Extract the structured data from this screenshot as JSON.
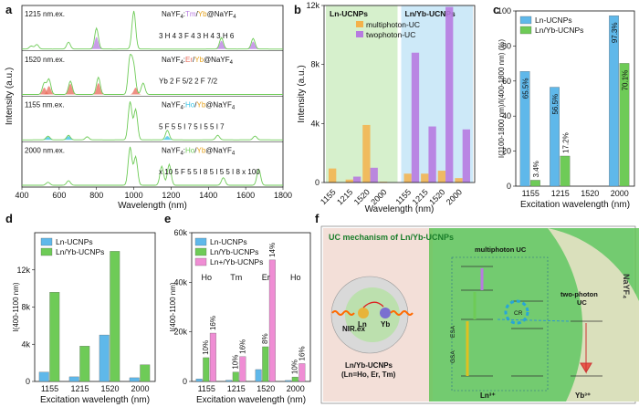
{
  "colors": {
    "blue": "#5fb8ea",
    "blueLight": "#cde9f8",
    "green": "#6ecb57",
    "greenLight": "#d6f0cc",
    "purple": "#b77be0",
    "orange": "#f4b24a",
    "red": "#e86a5a",
    "cyan": "#37c3e6",
    "pink": "#ef8dd4"
  },
  "labels": {
    "a": "a",
    "b": "b",
    "c": "c",
    "d": "d",
    "e": "e",
    "f": "f"
  },
  "chart_data": [
    {
      "id": "a",
      "type": "line",
      "xlabel": "Wavelength (nm)",
      "ylabel": "Intensity (a.u.)",
      "xlim": [
        400,
        1800
      ],
      "xticks": [
        "400",
        "600",
        "800",
        "1000",
        "1200",
        "1400",
        "1600",
        "1800"
      ],
      "rows": [
        {
          "exc": "1215 nm.ex.",
          "formula": [
            "NaYF",
            "4",
            ":",
            "Tm",
            "/",
            "Yb",
            "@NaYF",
            "4"
          ],
          "dopant_color": "#b77be0",
          "annotations": [
            "3",
            "H",
            "4",
            "3",
            "F",
            "4",
            "3",
            "H",
            "4",
            "3",
            "H",
            "6"
          ],
          "green_peaks": [
            [
              450,
              0.08
            ],
            [
              480,
              0.12
            ],
            [
              650,
              0.18
            ],
            [
              800,
              0.55
            ],
            [
              1000,
              1.0
            ],
            [
              1470,
              0.3
            ],
            [
              1640,
              0.28
            ]
          ],
          "fill_peaks": [
            [
              800,
              0.32,
              "#b77be0"
            ],
            [
              1470,
              0.22,
              "#b77be0"
            ],
            [
              1640,
              0.2,
              "#b77be0"
            ]
          ]
        },
        {
          "exc": "1520 nm.ex.",
          "formula": [
            "NaYF",
            "4",
            ":",
            "Er",
            "/",
            "Yb",
            "@NaYF",
            "4"
          ],
          "dopant_color": "#e86a5a",
          "annotations": [
            "Yb",
            "2",
            "F",
            "5/2",
            "2",
            "F",
            "7/2"
          ],
          "green_peaks": [
            [
              520,
              0.3
            ],
            [
              545,
              0.4
            ],
            [
              660,
              0.35
            ],
            [
              810,
              0.45
            ],
            [
              980,
              1.0
            ],
            [
              1000,
              0.7
            ],
            [
              1050,
              0.3
            ]
          ],
          "fill_peaks": [
            [
              520,
              0.18,
              "#e86a5a"
            ],
            [
              545,
              0.22,
              "#e86a5a"
            ],
            [
              660,
              0.28,
              "#e86a5a"
            ],
            [
              810,
              0.3,
              "#e86a5a"
            ],
            [
              1010,
              0.18,
              "#e86a5a"
            ]
          ]
        },
        {
          "exc": "1155 nm.ex.",
          "formula": [
            "NaYF",
            "4",
            ":",
            "Ho",
            "/",
            "Yb",
            "@NaYF",
            "4"
          ],
          "dopant_color": "#37c3e6",
          "annotations": [
            "5",
            "F",
            "5",
            "5",
            "I",
            "7",
            "5",
            "I",
            "5",
            "5",
            "I",
            "7"
          ],
          "green_peaks": [
            [
              540,
              0.1
            ],
            [
              650,
              0.12
            ],
            [
              750,
              0.08
            ],
            [
              980,
              1.0
            ],
            [
              1010,
              0.8
            ],
            [
              1180,
              0.25
            ],
            [
              1450,
              0.12
            ],
            [
              1650,
              0.1
            ]
          ],
          "fill_peaks": [
            [
              540,
              0.08,
              "#37c3e6"
            ],
            [
              650,
              0.1,
              "#37c3e6"
            ],
            [
              1180,
              0.1,
              "#37c3e6"
            ]
          ]
        },
        {
          "exc": "2000 nm.ex.",
          "formula": [
            "NaYF",
            "4",
            ":",
            "Ho",
            "/",
            "Yb",
            "@NaYF",
            "4"
          ],
          "dopant_color": "#6ecb57",
          "annotations": [
            "x 10",
            "5",
            "F",
            "5",
            "5",
            "I",
            "8",
            "5",
            "I",
            "5",
            "5",
            "I",
            "8",
            "x 100"
          ],
          "green_peaks": [
            [
              540,
              0.08
            ],
            [
              650,
              0.12
            ],
            [
              980,
              1.0
            ],
            [
              1010,
              0.75
            ],
            [
              1150,
              0.5
            ],
            [
              1190,
              0.55
            ],
            [
              1480,
              0.2
            ],
            [
              1670,
              0.42
            ]
          ],
          "fill_peaks": []
        }
      ]
    },
    {
      "id": "b",
      "type": "bar",
      "ylabel": "Intensity (a.u.)",
      "xlabel": "Wavelength (nm)",
      "ylim": [
        0,
        12000
      ],
      "yticks": [
        "0",
        "4k",
        "8k",
        "12k"
      ],
      "groups": [
        {
          "name": "Ln-UCNPs",
          "bg": "#d6f0cc",
          "categories": [
            "1155",
            "1215",
            "1520",
            "2000"
          ],
          "multiphoton": [
            950,
            200,
            3900,
            50
          ],
          "twophoton": [
            0,
            400,
            1000,
            0
          ]
        },
        {
          "name": "Ln/Yb-UCNPs",
          "bg": "#cde9f8",
          "categories": [
            "1155",
            "1215",
            "1520",
            "2000"
          ],
          "multiphoton": [
            600,
            600,
            800,
            300
          ],
          "twophoton": [
            8800,
            3800,
            11900,
            3600
          ]
        }
      ],
      "legend": [
        "multiphoton-UC",
        "twophoton-UC"
      ]
    },
    {
      "id": "c",
      "type": "bar",
      "ylabel": "I(1100-1800 nm)/I(400-1800 nm) (%)",
      "xlabel": "Excitation wavelength (nm)",
      "ylim": [
        0,
        100
      ],
      "yticks": [
        "0",
        "20",
        "40",
        "60",
        "80",
        "100"
      ],
      "categories": [
        "1155",
        "1215",
        "1520",
        "2000"
      ],
      "series": [
        {
          "name": "Ln-UCNPs",
          "values": [
            65.5,
            56.5,
            0,
            97.3
          ],
          "labels": [
            "65.5%",
            "56.5%",
            "",
            "97.3%"
          ]
        },
        {
          "name": "Ln/Yb-UCNPs",
          "values": [
            3.4,
            17.2,
            0,
            70.1
          ],
          "labels": [
            "3.4%",
            "17.2%",
            "",
            "70.1%"
          ]
        }
      ]
    },
    {
      "id": "d",
      "type": "bar",
      "ylabel": "I(400-1100 nm)",
      "xlabel": "Excitation wavelength (nm)",
      "ylim": [
        0,
        16000
      ],
      "yticks": [
        "0",
        "4k",
        "8k",
        "12k"
      ],
      "categories": [
        "1155",
        "1215",
        "1520",
        "2000"
      ],
      "series": [
        {
          "name": "Ln-UCNPs",
          "values": [
            1000,
            500,
            5000,
            400
          ]
        },
        {
          "name": "Ln/Yb-UCNPs",
          "values": [
            9600,
            3800,
            14000,
            1800
          ]
        }
      ]
    },
    {
      "id": "e",
      "type": "bar",
      "ylabel": "I(400-1100 nm)",
      "xlabel": "Excitation wavelength (nm)",
      "ylim": [
        0,
        60000
      ],
      "yticks": [
        "0",
        "20k",
        "40k",
        "60k"
      ],
      "categories": [
        "1155",
        "1215",
        "1520",
        "2000"
      ],
      "ions": [
        "Ho",
        "Tm",
        "Er",
        "Ho"
      ],
      "series": [
        {
          "name": "Ln-UCNPs",
          "values": [
            1000,
            500,
            4800,
            400
          ]
        },
        {
          "name": "Ln/Yb-UCNPs",
          "values": [
            9600,
            3800,
            14000,
            1800
          ]
        },
        {
          "name": "Ln+/Yb-UCNPs",
          "values": [
            19500,
            10000,
            49000,
            7200
          ]
        }
      ],
      "pct_labels": [
        [
          "10%",
          "16%"
        ],
        [
          "10%",
          "16%"
        ],
        [
          "8%",
          "14%"
        ],
        [
          "10%",
          "16%"
        ]
      ]
    }
  ],
  "schematic": {
    "title": "UC mechanism  of Ln/Yb-UCNPs",
    "nir": "NIR.ex",
    "ln": "Ln",
    "yb": "Yb",
    "np_label1": "Ln/Yb-UCNPs",
    "np_label2": "(Ln=Ho, Er, Tm)",
    "multiphoton": "multiphoton UC",
    "twophoton1": "two-photon",
    "twophoton2": "UC",
    "esa": "ESA",
    "gsa": "GSA",
    "cr": "CR",
    "ln_ion": "Ln³⁺",
    "yb_ion": "Yb³⁺",
    "nayf": "NaYF₄"
  }
}
